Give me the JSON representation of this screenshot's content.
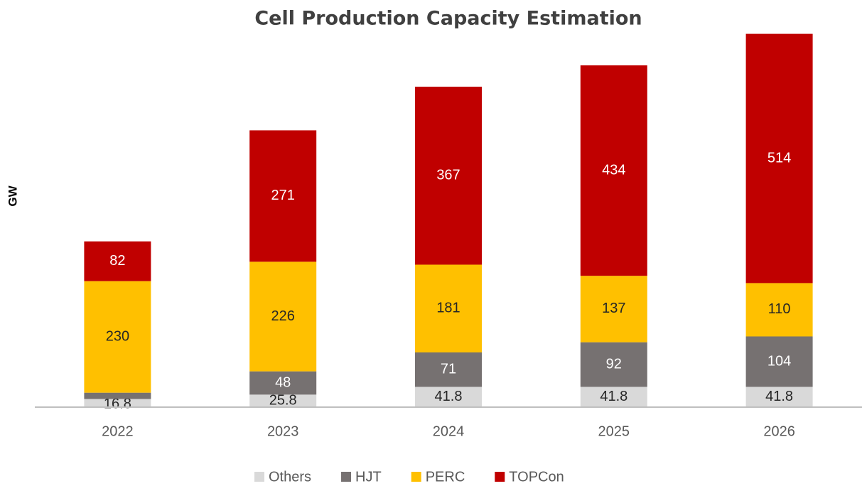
{
  "chart_data": {
    "type": "stacked_bar",
    "title": "Cell Production Capacity Estimation",
    "y_label": "GW",
    "categories": [
      "2022",
      "2023",
      "2024",
      "2025",
      "2026"
    ],
    "series": [
      {
        "name": "Others",
        "color": "#d9d9d9",
        "values": [
          16.8,
          25.8,
          41.8,
          41.8,
          41.8
        ]
      },
      {
        "name": "HJT",
        "color": "#767171",
        "values": [
          13,
          48,
          71,
          92,
          104
        ]
      },
      {
        "name": "PERC",
        "color": "#ffc000",
        "values": [
          230,
          226,
          181,
          137,
          110
        ]
      },
      {
        "name": "TOPCon",
        "color": "#c00000",
        "values": [
          82,
          271,
          367,
          434,
          514
        ]
      }
    ],
    "ylim": [
      0,
      800
    ],
    "legend": "bottom"
  }
}
